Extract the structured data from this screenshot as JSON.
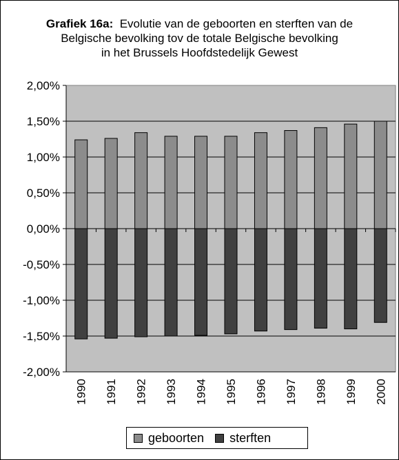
{
  "title": {
    "bold": "Grafiek 16a:",
    "line1": "Evolutie van de geboorten en sterften van de",
    "line2": "Belgische bevolking tov de totale Belgische bevolking",
    "line3": "in het Brussels Hoofdstedelijk Gewest"
  },
  "chart_data": {
    "type": "bar",
    "stacked": true,
    "categories": [
      "1990",
      "1991",
      "1992",
      "1993",
      "1994",
      "1995",
      "1996",
      "1997",
      "1998",
      "1999",
      "2000"
    ],
    "series": [
      {
        "name": "geboorten",
        "color": "#8c8c8c",
        "values": [
          1.24,
          1.26,
          1.34,
          1.29,
          1.29,
          1.29,
          1.34,
          1.37,
          1.41,
          1.46,
          1.5
        ]
      },
      {
        "name": "sterften",
        "color": "#404040",
        "values": [
          -1.54,
          -1.53,
          -1.51,
          -1.5,
          -1.49,
          -1.47,
          -1.43,
          -1.41,
          -1.39,
          -1.4,
          -1.31
        ]
      }
    ],
    "ylim": [
      -2.0,
      2.0
    ],
    "yticks": [
      "2,00%",
      "1,50%",
      "1,00%",
      "0,50%",
      "0,00%",
      "-0,50%",
      "-1,00%",
      "-1,50%",
      "-2,00%"
    ],
    "plot_background": "#c0c0c0",
    "grid": true,
    "legend_position": "bottom"
  }
}
